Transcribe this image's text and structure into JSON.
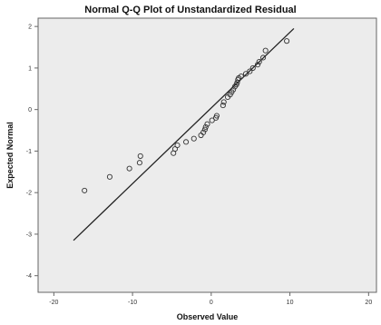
{
  "chart_data": {
    "type": "scatter",
    "title": "Normal Q-Q Plot of Unstandardized Residual",
    "xlabel": "Observed Value",
    "ylabel": "Expected Normal",
    "xlim": [
      -22,
      21
    ],
    "ylim": [
      -4.4,
      2.2
    ],
    "x_ticks": [
      -20,
      -10,
      0,
      10,
      20
    ],
    "y_ticks": [
      2,
      1,
      0,
      -1,
      -2,
      -3,
      -4
    ],
    "grid": false,
    "reference_line": {
      "x": [
        -17.5,
        10.5
      ],
      "y": [
        -3.15,
        1.95
      ]
    },
    "points": {
      "x": [
        -16.1,
        -12.9,
        -10.4,
        -9.1,
        -9.0,
        -4.8,
        -4.6,
        -4.3,
        -3.2,
        -2.2,
        -1.3,
        -1.0,
        -0.8,
        -0.7,
        -0.5,
        0.1,
        0.6,
        0.7,
        1.5,
        1.6,
        2.1,
        2.4,
        2.6,
        2.8,
        3.0,
        3.2,
        3.3,
        3.4,
        3.5,
        3.8,
        4.4,
        4.9,
        5.3,
        5.9,
        6.1,
        6.6,
        6.9,
        9.6
      ],
      "y": [
        -1.95,
        -1.62,
        -1.42,
        -1.28,
        -1.12,
        -1.05,
        -0.95,
        -0.86,
        -0.78,
        -0.7,
        -0.62,
        -0.55,
        -0.48,
        -0.42,
        -0.35,
        -0.26,
        -0.2,
        -0.15,
        0.1,
        0.18,
        0.3,
        0.36,
        0.42,
        0.48,
        0.55,
        0.6,
        0.65,
        0.72,
        0.76,
        0.8,
        0.86,
        0.92,
        1.0,
        1.08,
        1.15,
        1.25,
        1.42,
        1.65
      ]
    },
    "colors": {
      "plot_bg": "#ececec",
      "frame": "#666666",
      "line": "#222222",
      "marker": "#333333"
    }
  }
}
